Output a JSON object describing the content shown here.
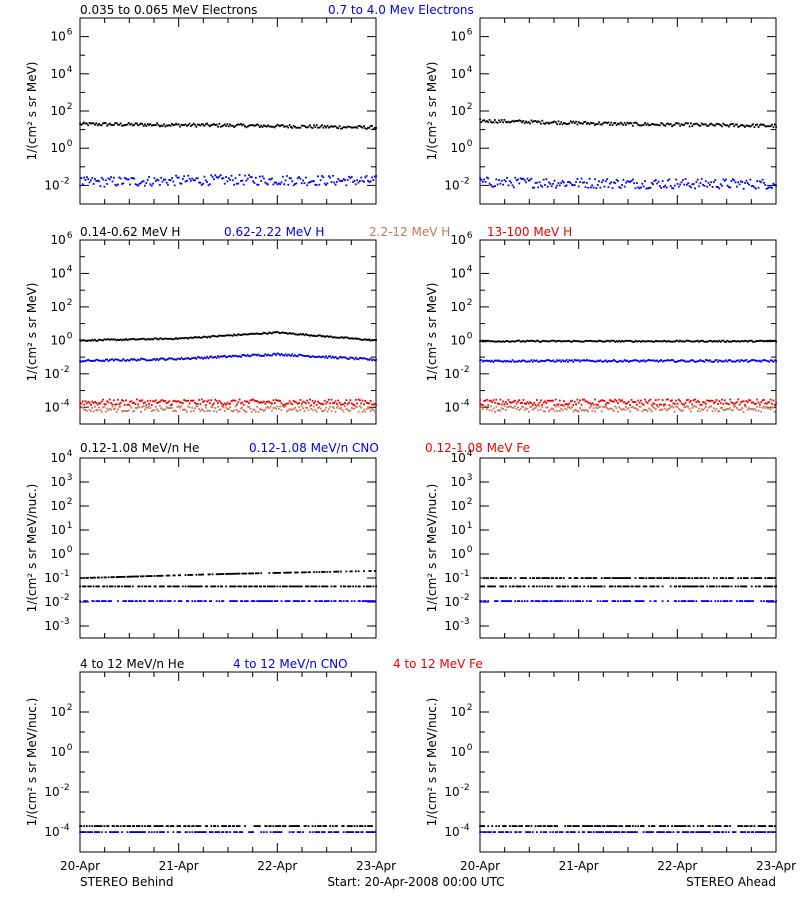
{
  "colors": {
    "black": "#000000",
    "blue": "#0000ee",
    "salmon": "#c8785a",
    "red": "#ee0000"
  },
  "x_ticks": [
    "20-Apr",
    "21-Apr",
    "22-Apr",
    "23-Apr"
  ],
  "footer": {
    "left": "STEREO Behind",
    "center": "Start: 20-Apr-2008 00:00 UTC",
    "right": "STEREO Ahead"
  },
  "chart_data": [
    {
      "type": "scatter",
      "panel": "electrons",
      "labels": [
        {
          "text": "0.035 to 0.065 MeV Electrons",
          "color": "black"
        },
        {
          "text": "0.7 to 4.0 Mev Electrons",
          "color": "blue"
        }
      ],
      "ylabel": "1/(cm² s sr MeV)",
      "yscale": "log",
      "ylim_exp": [
        -3,
        7
      ],
      "y_tick_exps": [
        -2,
        0,
        2,
        4,
        6
      ],
      "y_tick_style": "power",
      "xlim": [
        "20-Apr-2008 00:00",
        "23-Apr-2008 00:00"
      ],
      "behind": {
        "series": [
          {
            "color": "black",
            "values": [
              20,
              17,
              13
            ]
          },
          {
            "color": "blue",
            "values": [
              0.015,
              0.02,
              0.018
            ]
          }
        ]
      },
      "ahead": {
        "series": [
          {
            "color": "black",
            "values": [
              30,
              20,
              16
            ]
          },
          {
            "color": "blue",
            "values": [
              0.015,
              0.013,
              0.012
            ]
          }
        ]
      }
    },
    {
      "type": "scatter",
      "panel": "protons",
      "labels": [
        {
          "text": "0.14-0.62 MeV H",
          "color": "black"
        },
        {
          "text": "0.62-2.22 MeV H",
          "color": "blue"
        },
        {
          "text": "2.2-12 MeV H",
          "color": "salmon"
        },
        {
          "text": "13-100 MeV H",
          "color": "red"
        }
      ],
      "ylabel": "1/(cm² s sr MeV)",
      "yscale": "log",
      "ylim_exp": [
        -5,
        6
      ],
      "y_tick_exps": [
        -4,
        -2,
        0,
        2,
        4,
        6
      ],
      "y_tick_style": "power",
      "behind": {
        "series": [
          {
            "color": "black",
            "values": [
              1.0,
              1.3,
              3.0,
              1.0
            ]
          },
          {
            "color": "blue",
            "values": [
              0.06,
              0.08,
              0.15,
              0.07
            ]
          },
          {
            "color": "red",
            "values": [
              0.0002,
              0.0002,
              0.0002,
              0.0002
            ]
          },
          {
            "color": "salmon",
            "values": [
              8e-05,
              8e-05,
              8e-05,
              8e-05
            ]
          }
        ]
      },
      "ahead": {
        "series": [
          {
            "color": "black",
            "values": [
              0.9,
              0.9,
              0.9,
              0.9
            ]
          },
          {
            "color": "blue",
            "values": [
              0.06,
              0.06,
              0.06,
              0.06
            ]
          },
          {
            "color": "red",
            "values": [
              0.0002,
              0.0002,
              0.0002,
              0.0002
            ]
          },
          {
            "color": "salmon",
            "values": [
              8e-05,
              8e-05,
              8e-05,
              8e-05
            ]
          }
        ]
      }
    },
    {
      "type": "scatter",
      "panel": "heavy-ions-low",
      "labels": [
        {
          "text": "0.12-1.08 MeV/n He",
          "color": "black"
        },
        {
          "text": "0.12-1.08 MeV/n CNO",
          "color": "blue"
        },
        {
          "text": "0.12-1.08 MeV Fe",
          "color": "red"
        }
      ],
      "ylabel": "1/(cm² s sr MeV/nuc.)",
      "yscale": "log",
      "ylim_exp": [
        -3.5,
        4
      ],
      "y_tick_exps": [
        -3,
        -2,
        -1,
        0,
        1,
        2,
        3,
        4
      ],
      "y_tick_style": "power",
      "behind": {
        "series": [
          {
            "color": "black",
            "values": [
              0.045,
              0.045,
              0.045
            ]
          },
          {
            "color": "black",
            "values": [
              0.1,
              0.15,
              0.2
            ]
          },
          {
            "color": "blue",
            "values": [
              0.011,
              0.011,
              0.011
            ]
          }
        ]
      },
      "ahead": {
        "series": [
          {
            "color": "black",
            "values": [
              0.045,
              0.045,
              0.045
            ]
          },
          {
            "color": "black",
            "values": [
              0.1,
              0.1,
              0.1
            ]
          },
          {
            "color": "blue",
            "values": [
              0.011,
              0.011,
              0.011
            ]
          }
        ]
      }
    },
    {
      "type": "scatter",
      "panel": "heavy-ions-high",
      "labels": [
        {
          "text": "4 to 12 MeV/n He",
          "color": "black"
        },
        {
          "text": "4 to 12 MeV/n CNO",
          "color": "blue"
        },
        {
          "text": "4 to 12 MeV Fe",
          "color": "red"
        }
      ],
      "ylabel": "1/(cm² s sr MeV/nuc.)",
      "yscale": "log",
      "ylim_exp": [
        -5,
        4
      ],
      "y_tick_exps": [
        -4,
        -2,
        0,
        2
      ],
      "y_tick_style": "power",
      "behind": {
        "series": [
          {
            "color": "blue",
            "values": [
              0.0001,
              0.0001,
              0.0001
            ]
          },
          {
            "color": "black",
            "values": [
              0.0002,
              0.0002,
              0.0002
            ]
          }
        ]
      },
      "ahead": {
        "series": [
          {
            "color": "blue",
            "values": [
              0.0001,
              0.0001,
              0.0001
            ]
          },
          {
            "color": "black",
            "values": [
              0.0002,
              0.0002,
              0.0002
            ]
          }
        ]
      }
    }
  ]
}
